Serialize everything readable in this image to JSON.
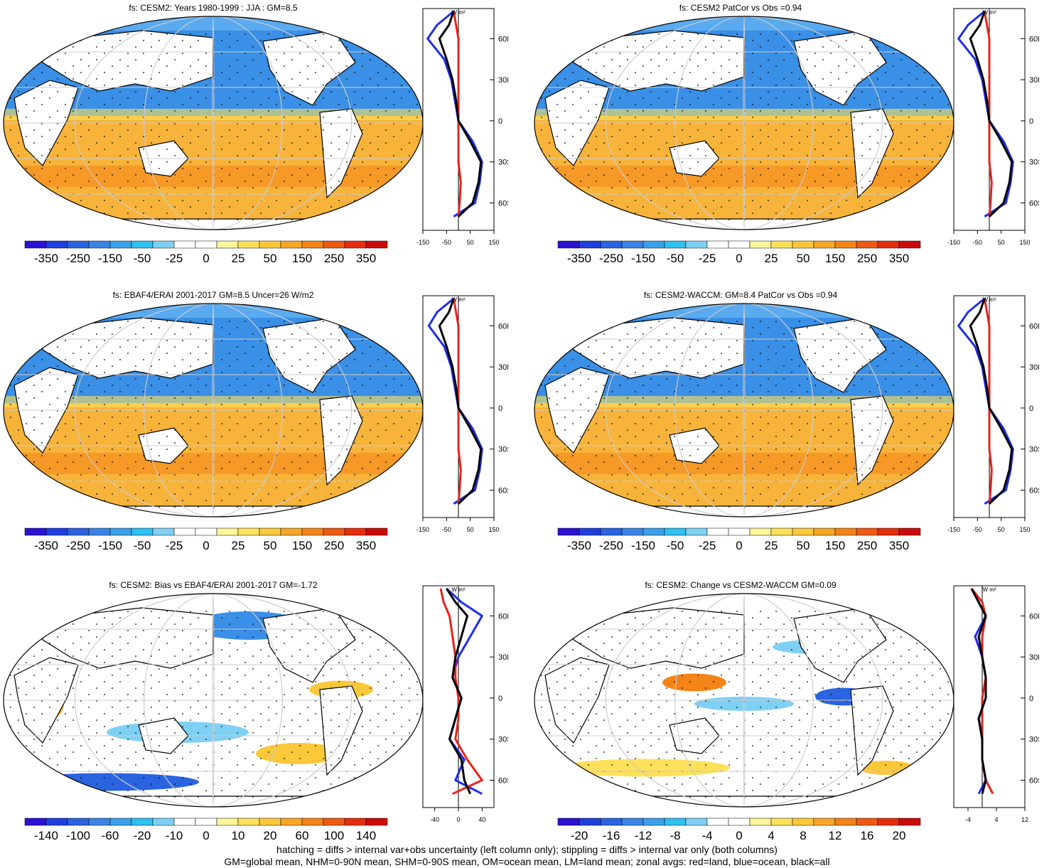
{
  "colors": {
    "scale_fs": [
      "#2b12d4",
      "#1f3ee0",
      "#2a64e0",
      "#3b84e6",
      "#3aa0ea",
      "#2ec0f0",
      "#7ed0f4",
      "#ffffff",
      "#ffffff",
      "#fff59a",
      "#fde15a",
      "#fbc83a",
      "#f8a626",
      "#f48418",
      "#ef5a12",
      "#e62d0c",
      "#cc0a0a"
    ],
    "land_fill": "#ffffff",
    "ocean_north": "#3a8fe6",
    "ocean_south": "#f8b43a",
    "zonal_land": "#e8231c",
    "zonal_ocean": "#1d2ee8",
    "zonal_all": "#000000"
  },
  "panels": [
    {
      "title": "fs: CESM2: Years 1980-1999 : JJA : GM=8.5",
      "colorbar_labels": [
        "-350",
        "-250",
        "-150",
        "-50",
        "-25",
        "0",
        "25",
        "50",
        "150",
        "250",
        "350"
      ],
      "zonal_x_ticks": [
        "-150",
        "-50",
        "50",
        "150"
      ],
      "lat_labels": [
        "60N",
        "30N",
        "0",
        "30S",
        "60S"
      ],
      "zonal_unit": "W m²"
    },
    {
      "title": "fs: CESM2 PatCor vs Obs =0.94",
      "colorbar_labels": [
        "-350",
        "-250",
        "-150",
        "-50",
        "-25",
        "0",
        "25",
        "50",
        "150",
        "250",
        "350"
      ],
      "zonal_x_ticks": [
        "-150",
        "-50",
        "50",
        "150"
      ],
      "lat_labels": [
        "60N",
        "30N",
        "0",
        "30S",
        "60S"
      ],
      "zonal_unit": "W m²"
    },
    {
      "title": "fs: EBAF4/ERAI 2001-2017 GM=8.5 Uncer=26 W/m2",
      "colorbar_labels": [
        "-350",
        "-250",
        "-150",
        "-50",
        "-25",
        "0",
        "25",
        "50",
        "150",
        "250",
        "350"
      ],
      "zonal_x_ticks": [
        "-150",
        "-50",
        "50",
        "150"
      ],
      "lat_labels": [
        "60N",
        "30N",
        "0",
        "30S",
        "60S"
      ],
      "zonal_unit": "W m²"
    },
    {
      "title": "fs: CESM2-WACCM: GM=8.4 PatCor vs Obs =0.94",
      "colorbar_labels": [
        "-350",
        "-250",
        "-150",
        "-50",
        "-25",
        "0",
        "25",
        "50",
        "150",
        "250",
        "350"
      ],
      "zonal_x_ticks": [
        "-150",
        "-50",
        "50",
        "150"
      ],
      "lat_labels": [
        "60N",
        "30N",
        "0",
        "30S",
        "60S"
      ],
      "zonal_unit": "W m²"
    },
    {
      "title": "fs: CESM2: Bias vs EBAF4/ERAI 2001-2017 GM=-1.72",
      "colorbar_labels": [
        "-140",
        "-100",
        "-60",
        "-20",
        "-10",
        "0",
        "10",
        "20",
        "60",
        "100",
        "140"
      ],
      "zonal_x_ticks": [
        "-40",
        "0",
        "40"
      ],
      "lat_labels": [
        "60N",
        "30N",
        "0",
        "30S",
        "60S"
      ],
      "zonal_unit": "W m²"
    },
    {
      "title": "fs: CESM2: Change vs CESM2-WACCM GM=0.09",
      "colorbar_labels": [
        "-20",
        "-16",
        "-12",
        "-8",
        "-4",
        "0",
        "4",
        "8",
        "12",
        "16",
        "20"
      ],
      "zonal_x_ticks": [
        "-4",
        "4",
        "12"
      ],
      "lat_labels": [
        "60N",
        "30N",
        "0",
        "30S",
        "60S"
      ],
      "zonal_unit": "W m²"
    }
  ],
  "chart_data": [
    {
      "type": "heatmap",
      "title": "fs: CESM2: Years 1980-1999 : JJA : GM=8.5",
      "zonal_xlim": [
        -150,
        150
      ],
      "zonal_profiles": {
        "lat": [
          80,
          70,
          60,
          45,
          30,
          15,
          0,
          -15,
          -30,
          -45,
          -60,
          -70
        ],
        "ocean": [
          -20,
          -90,
          -130,
          -60,
          -30,
          -15,
          0,
          60,
          100,
          90,
          70,
          -20
        ],
        "land": [
          -20,
          -10,
          0,
          0,
          0,
          0,
          0,
          0,
          0,
          10,
          5,
          0
        ],
        "all": [
          -20,
          -40,
          -80,
          -50,
          -25,
          -10,
          0,
          50,
          95,
          85,
          60,
          0
        ]
      }
    },
    {
      "type": "heatmap",
      "title": "fs: CESM2 PatCor vs Obs =0.94",
      "zonal_xlim": [
        -150,
        150
      ],
      "zonal_profiles": {
        "lat": [
          80,
          70,
          60,
          45,
          30,
          15,
          0,
          -15,
          -30,
          -45,
          -60,
          -70
        ],
        "ocean": [
          -20,
          -90,
          -130,
          -60,
          -30,
          -15,
          0,
          60,
          100,
          90,
          70,
          -20
        ],
        "land": [
          -20,
          -10,
          0,
          0,
          0,
          0,
          0,
          0,
          0,
          10,
          5,
          0
        ],
        "all": [
          -20,
          -40,
          -80,
          -50,
          -25,
          -10,
          0,
          50,
          95,
          85,
          60,
          0
        ]
      }
    },
    {
      "type": "heatmap",
      "title": "fs: EBAF4/ERAI 2001-2017 GM=8.5 Uncer=26 W/m2",
      "zonal_xlim": [
        -150,
        150
      ],
      "zonal_profiles": {
        "lat": [
          80,
          70,
          60,
          45,
          30,
          15,
          0,
          -15,
          -30,
          -45,
          -60,
          -70
        ],
        "ocean": [
          -20,
          -90,
          -125,
          -60,
          -30,
          -15,
          0,
          60,
          100,
          90,
          70,
          -20
        ],
        "land": [
          -20,
          -10,
          0,
          0,
          0,
          0,
          0,
          0,
          0,
          10,
          5,
          0
        ],
        "all": [
          -20,
          -40,
          -80,
          -50,
          -25,
          -10,
          0,
          50,
          95,
          85,
          60,
          0
        ]
      }
    },
    {
      "type": "heatmap",
      "title": "fs: CESM2-WACCM: GM=8.4 PatCor vs Obs =0.94",
      "zonal_xlim": [
        -150,
        150
      ],
      "zonal_profiles": {
        "lat": [
          80,
          70,
          60,
          45,
          30,
          15,
          0,
          -15,
          -30,
          -45,
          -60,
          -70
        ],
        "ocean": [
          -20,
          -90,
          -130,
          -60,
          -30,
          -15,
          0,
          60,
          100,
          90,
          70,
          -20
        ],
        "land": [
          -20,
          -10,
          0,
          0,
          0,
          0,
          0,
          0,
          0,
          10,
          5,
          0
        ],
        "all": [
          -20,
          -40,
          -80,
          -50,
          -25,
          -10,
          0,
          50,
          95,
          85,
          60,
          0
        ]
      }
    },
    {
      "type": "heatmap",
      "title": "fs: CESM2: Bias vs EBAF4/ERAI 2001-2017 GM=-1.72",
      "zonal_xlim": [
        -60,
        60
      ],
      "zonal_profiles": {
        "lat": [
          80,
          70,
          60,
          45,
          30,
          15,
          0,
          -15,
          -30,
          -45,
          -60,
          -70
        ],
        "ocean": [
          -20,
          5,
          40,
          20,
          0,
          -10,
          5,
          -5,
          -15,
          10,
          -5,
          40
        ],
        "land": [
          -30,
          -25,
          -15,
          -10,
          -5,
          -5,
          0,
          0,
          -5,
          15,
          40,
          -10
        ],
        "all": [
          -20,
          -5,
          15,
          5,
          -5,
          -10,
          5,
          -5,
          -15,
          5,
          10,
          20
        ]
      }
    },
    {
      "type": "heatmap",
      "title": "fs: CESM2: Change vs CESM2-WACCM GM=0.09",
      "zonal_xlim": [
        -8,
        12
      ],
      "zonal_profiles": {
        "lat": [
          80,
          70,
          60,
          45,
          30,
          15,
          0,
          -15,
          -30,
          -45,
          -60,
          -70
        ],
        "ocean": [
          -3,
          -1,
          1,
          -2,
          0,
          1,
          1,
          -1,
          0,
          0,
          1,
          -1
        ],
        "land": [
          -3,
          0,
          1,
          0,
          0,
          1,
          0,
          0,
          0,
          0,
          1,
          3
        ],
        "all": [
          -3,
          -1,
          1,
          -1,
          0,
          1,
          1,
          -1,
          0,
          0,
          1,
          0
        ]
      }
    }
  ],
  "footnote": {
    "line1": "hatching = diffs > internal var+obs uncertainty (left column only); stippling = diffs > internal var only (both columns)",
    "line2": "GM=global mean, NHM=0-90N mean, SHM=0-90S mean, OM=ocean mean, LM=land mean; zonal avgs: red=land, blue=ocean, black=all"
  }
}
